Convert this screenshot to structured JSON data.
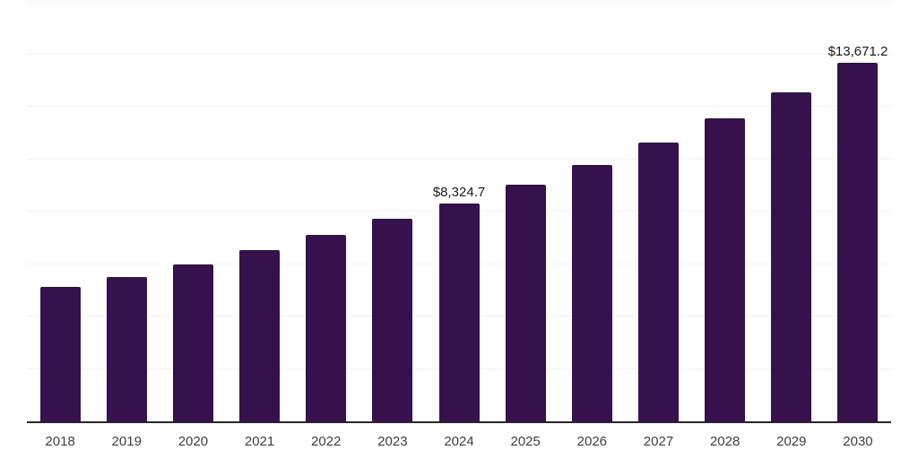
{
  "chart_data": {
    "type": "bar",
    "title": "",
    "xlabel": "",
    "ylabel": "",
    "categories": [
      "2018",
      "2019",
      "2020",
      "2021",
      "2022",
      "2023",
      "2024",
      "2025",
      "2026",
      "2027",
      "2028",
      "2029",
      "2030"
    ],
    "values": [
      5120,
      5490,
      6000,
      6520,
      7100,
      7710,
      8324.7,
      9040,
      9790,
      10650,
      11570,
      12560,
      13671.2
    ],
    "data_labels": [
      "",
      "",
      "",
      "",
      "",
      "",
      "$8,324.7",
      "",
      "",
      "",
      "",
      "",
      "$13,671.2"
    ],
    "ylim": [
      0,
      16000
    ],
    "gridline_step": 2000,
    "grid": "horizontal",
    "y_tick_labels_shown": false,
    "legend_position": "none",
    "colors": {
      "bar": "#36114E",
      "axis_line": "#262626",
      "gridline": "#f1f1f1",
      "tick_label": "#404040",
      "data_label": "#1a1a1a",
      "background": "#ffffff"
    }
  }
}
